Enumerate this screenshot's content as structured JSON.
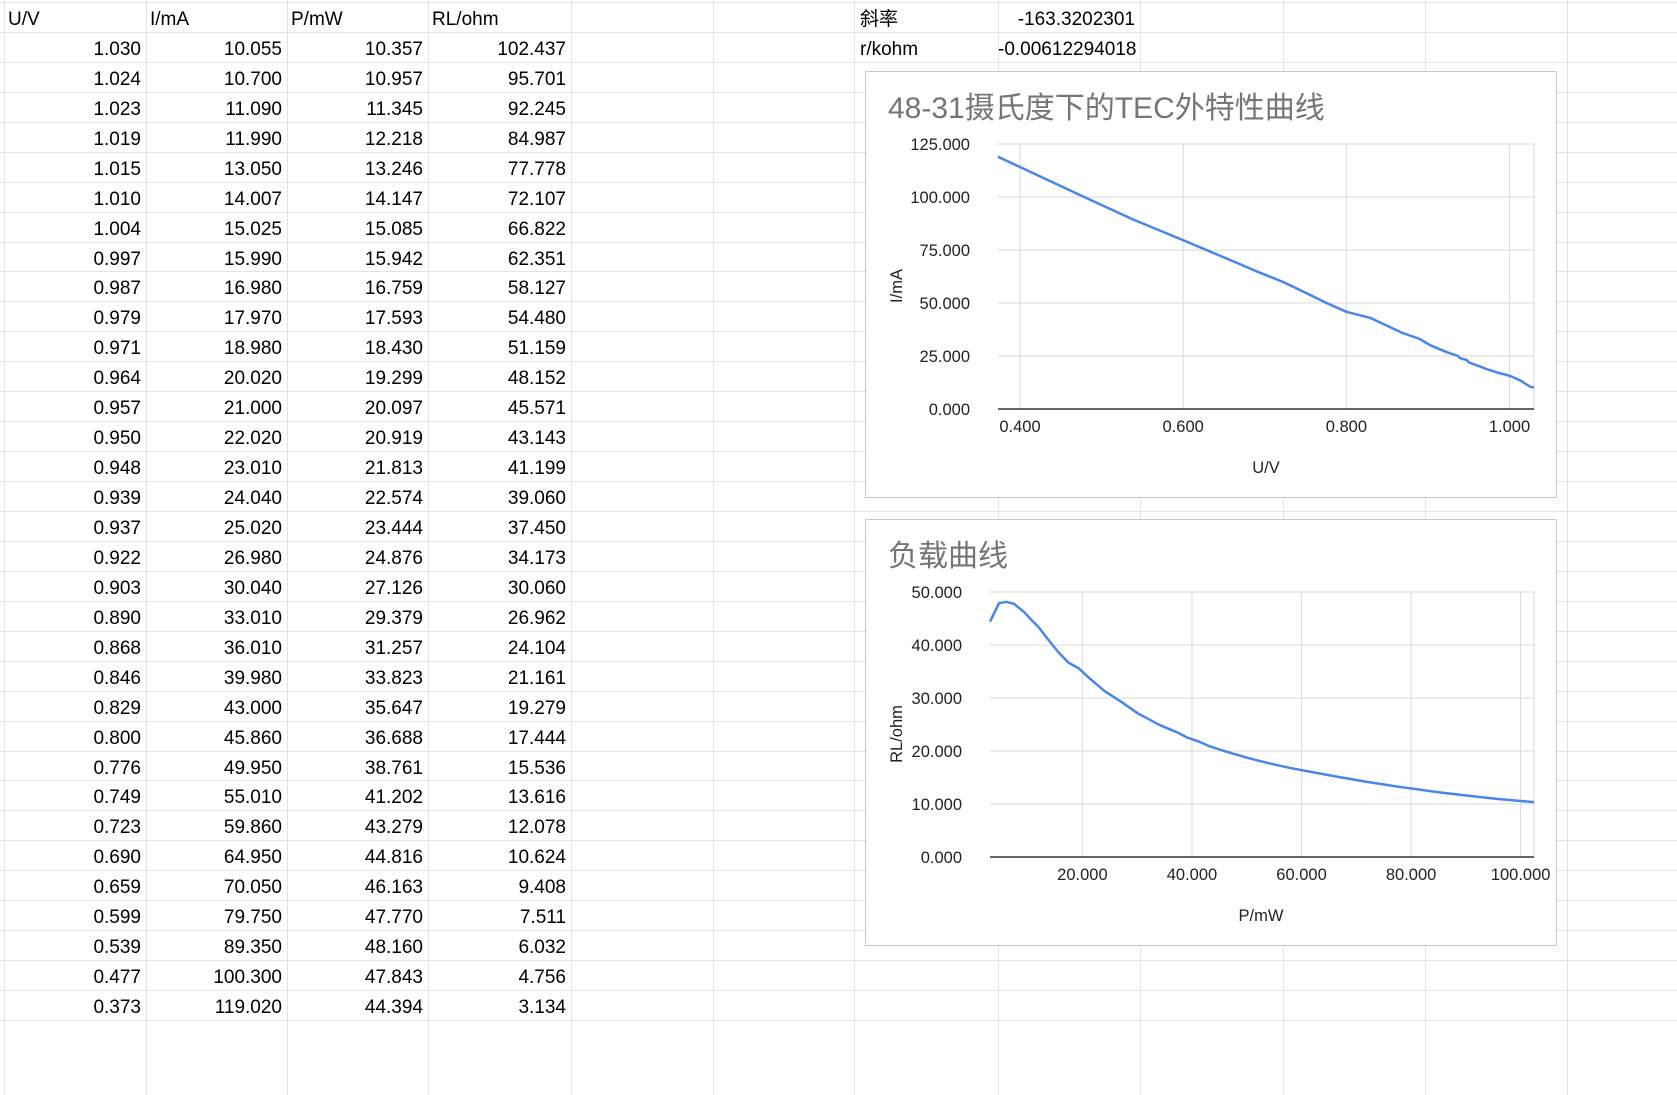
{
  "sheet": {
    "headers": [
      "U/V",
      "I/mA",
      "P/mW",
      "RL/ohm"
    ],
    "rows": [
      [
        "1.030",
        "10.055",
        "10.357",
        "102.437"
      ],
      [
        "1.024",
        "10.700",
        "10.957",
        "95.701"
      ],
      [
        "1.023",
        "11.090",
        "11.345",
        "92.245"
      ],
      [
        "1.019",
        "11.990",
        "12.218",
        "84.987"
      ],
      [
        "1.015",
        "13.050",
        "13.246",
        "77.778"
      ],
      [
        "1.010",
        "14.007",
        "14.147",
        "72.107"
      ],
      [
        "1.004",
        "15.025",
        "15.085",
        "66.822"
      ],
      [
        "0.997",
        "15.990",
        "15.942",
        "62.351"
      ],
      [
        "0.987",
        "16.980",
        "16.759",
        "58.127"
      ],
      [
        "0.979",
        "17.970",
        "17.593",
        "54.480"
      ],
      [
        "0.971",
        "18.980",
        "18.430",
        "51.159"
      ],
      [
        "0.964",
        "20.020",
        "19.299",
        "48.152"
      ],
      [
        "0.957",
        "21.000",
        "20.097",
        "45.571"
      ],
      [
        "0.950",
        "22.020",
        "20.919",
        "43.143"
      ],
      [
        "0.948",
        "23.010",
        "21.813",
        "41.199"
      ],
      [
        "0.939",
        "24.040",
        "22.574",
        "39.060"
      ],
      [
        "0.937",
        "25.020",
        "23.444",
        "37.450"
      ],
      [
        "0.922",
        "26.980",
        "24.876",
        "34.173"
      ],
      [
        "0.903",
        "30.040",
        "27.126",
        "30.060"
      ],
      [
        "0.890",
        "33.010",
        "29.379",
        "26.962"
      ],
      [
        "0.868",
        "36.010",
        "31.257",
        "24.104"
      ],
      [
        "0.846",
        "39.980",
        "33.823",
        "21.161"
      ],
      [
        "0.829",
        "43.000",
        "35.647",
        "19.279"
      ],
      [
        "0.800",
        "45.860",
        "36.688",
        "17.444"
      ],
      [
        "0.776",
        "49.950",
        "38.761",
        "15.536"
      ],
      [
        "0.749",
        "55.010",
        "41.202",
        "13.616"
      ],
      [
        "0.723",
        "59.860",
        "43.279",
        "12.078"
      ],
      [
        "0.690",
        "64.950",
        "44.816",
        "10.624"
      ],
      [
        "0.659",
        "70.050",
        "46.163",
        "9.408"
      ],
      [
        "0.599",
        "79.750",
        "47.770",
        "7.511"
      ],
      [
        "0.539",
        "89.350",
        "48.160",
        "6.032"
      ],
      [
        "0.477",
        "100.300",
        "47.843",
        "4.756"
      ],
      [
        "0.373",
        "119.020",
        "44.394",
        "3.134"
      ]
    ],
    "summary": [
      {
        "label": "斜率",
        "value": "-163.3202301"
      },
      {
        "label": "r/kohm",
        "value": "-0.00612294018"
      }
    ]
  },
  "colors": {
    "line": "#4a86e8",
    "grid": "#d9d9d9",
    "title": "#757575"
  },
  "chart_data": [
    {
      "type": "line",
      "title": "48-31摄氏度下的TEC外特性曲线",
      "xlabel": "U/V",
      "ylabel": "I/mA",
      "xlim": [
        0.373,
        1.03
      ],
      "ylim": [
        0,
        125
      ],
      "xticks": [
        "0.400",
        "0.600",
        "0.800",
        "1.000"
      ],
      "yticks": [
        "0.000",
        "25.000",
        "50.000",
        "75.000",
        "100.000",
        "125.000"
      ],
      "grid": true,
      "series": [
        {
          "x": [
            1.03,
            1.024,
            1.023,
            1.019,
            1.015,
            1.01,
            1.004,
            0.997,
            0.987,
            0.979,
            0.971,
            0.964,
            0.957,
            0.95,
            0.948,
            0.939,
            0.937,
            0.922,
            0.903,
            0.89,
            0.868,
            0.846,
            0.829,
            0.8,
            0.776,
            0.749,
            0.723,
            0.69,
            0.659,
            0.599,
            0.539,
            0.477,
            0.373
          ],
          "y": [
            10.055,
            10.7,
            11.09,
            11.99,
            13.05,
            14.007,
            15.025,
            15.99,
            16.98,
            17.97,
            18.98,
            20.02,
            21.0,
            22.02,
            23.01,
            24.04,
            25.02,
            26.98,
            30.04,
            33.01,
            36.01,
            39.98,
            43.0,
            45.86,
            49.95,
            55.01,
            59.86,
            64.95,
            70.05,
            79.75,
            89.35,
            100.3,
            119.02
          ]
        }
      ]
    },
    {
      "type": "line",
      "title": "负载曲线",
      "xlabel": "P/mW",
      "ylabel": "RL/ohm",
      "xlim": [
        3.134,
        102.437
      ],
      "ylim": [
        0,
        50
      ],
      "xticks": [
        "20.000",
        "40.000",
        "60.000",
        "80.000",
        "100.000"
      ],
      "yticks": [
        "0.000",
        "10.000",
        "20.000",
        "30.000",
        "40.000",
        "50.000"
      ],
      "grid": true,
      "series": [
        {
          "x": [
            102.437,
            95.701,
            92.245,
            84.987,
            77.778,
            72.107,
            66.822,
            62.351,
            58.127,
            54.48,
            51.159,
            48.152,
            45.571,
            43.143,
            41.199,
            39.06,
            37.45,
            34.173,
            30.06,
            26.962,
            24.104,
            21.161,
            19.279,
            17.444,
            15.536,
            13.616,
            12.078,
            10.624,
            9.408,
            7.511,
            6.032,
            4.756,
            3.134
          ],
          "y": [
            10.357,
            10.957,
            11.345,
            12.218,
            13.246,
            14.147,
            15.085,
            15.942,
            16.759,
            17.593,
            18.43,
            19.299,
            20.097,
            20.919,
            21.813,
            22.574,
            23.444,
            24.876,
            27.126,
            29.379,
            31.257,
            33.823,
            35.647,
            36.688,
            38.761,
            41.202,
            43.279,
            44.816,
            46.163,
            47.77,
            48.16,
            47.843,
            44.394
          ]
        }
      ]
    }
  ]
}
